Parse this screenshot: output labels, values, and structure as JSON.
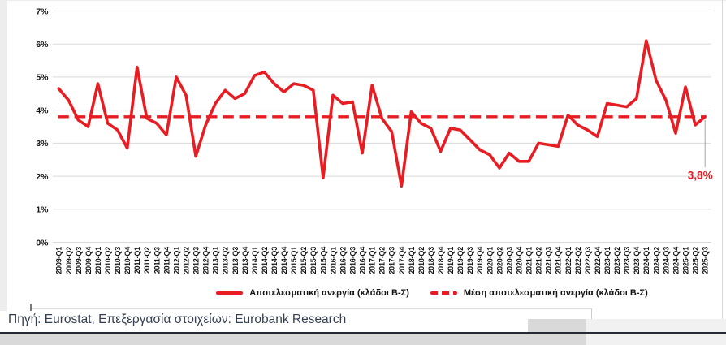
{
  "chart_data": {
    "type": "line",
    "title": "",
    "categories": [
      "2009-Q1",
      "2009-Q2",
      "2009-Q3",
      "2009-Q4",
      "2010-Q1",
      "2010-Q2",
      "2010-Q3",
      "2010-Q4",
      "2011-Q1",
      "2011-Q2",
      "2011-Q3",
      "2011-Q4",
      "2012-Q1",
      "2012-Q2",
      "2012-Q3",
      "2012-Q4",
      "2013-Q1",
      "2013-Q2",
      "2013-Q3",
      "2013-Q4",
      "2014-Q1",
      "2014-Q2",
      "2014-Q3",
      "2014-Q4",
      "2015-Q1",
      "2015-Q2",
      "2015-Q3",
      "2015-Q4",
      "2016-Q1",
      "2016-Q2",
      "2016-Q3",
      "2016-Q4",
      "2017-Q1",
      "2017-Q2",
      "2017-Q3",
      "2017-Q4",
      "2018-Q1",
      "2018-Q2",
      "2018-Q3",
      "2018-Q4",
      "2019-Q1",
      "2019-Q2",
      "2019-Q3",
      "2019-Q4",
      "2020-Q1",
      "2020-Q2",
      "2020-Q3",
      "2020-Q4",
      "2021-Q1",
      "2021-Q2",
      "2021-Q3",
      "2021-Q4",
      "2022-Q1",
      "2022-Q2",
      "2022-Q3",
      "2022-Q4",
      "2023-Q1",
      "2023-Q2",
      "2023-Q3",
      "2023-Q4",
      "2024-Q1",
      "2024-Q2",
      "2024-Q3",
      "2024-Q4",
      "2025-Q1",
      "2025-Q2",
      "2025-Q3"
    ],
    "series": [
      {
        "name": "Αποτελεσματική ανεργία (κλάδοι Β-Σ)",
        "style": "solid",
        "values": [
          4.65,
          4.3,
          3.7,
          3.5,
          4.8,
          3.6,
          3.4,
          2.85,
          5.3,
          3.75,
          3.6,
          3.25,
          5.0,
          4.45,
          2.6,
          3.55,
          4.2,
          4.6,
          4.35,
          4.5,
          5.05,
          5.15,
          4.8,
          4.55,
          4.8,
          4.75,
          4.6,
          1.95,
          4.45,
          4.2,
          4.25,
          2.7,
          4.75,
          3.75,
          3.35,
          1.7,
          3.95,
          3.6,
          3.45,
          2.75,
          3.45,
          3.4,
          3.1,
          2.8,
          2.65,
          2.25,
          2.7,
          2.45,
          2.45,
          3.0,
          2.95,
          2.9,
          3.85,
          3.55,
          3.4,
          3.2,
          4.2,
          4.15,
          4.1,
          4.35,
          6.1,
          4.9,
          4.3,
          3.3,
          4.7,
          3.55,
          3.8
        ]
      },
      {
        "name": "Μέση αποτελεσματική ανεργία (κλάδοι Β-Σ)",
        "style": "dashed",
        "value": 3.8
      }
    ],
    "ylim": [
      0,
      7
    ],
    "y_ticks": [
      "0%",
      "1%",
      "2%",
      "3%",
      "4%",
      "5%",
      "6%",
      "7%"
    ],
    "grid": true,
    "legend_position": "bottom",
    "annotation": {
      "text": "3,8%",
      "value": 3.8,
      "category": "2025-Q3"
    },
    "colors": {
      "series": "#e71d23",
      "mean": "#e71d23",
      "grid": "#d9d9d9",
      "annotation": "#e71d23"
    }
  },
  "footer": {
    "source_text": "Πηγή: Eurostat, Επεξεργασία στοιχείων: Eurobank Research"
  }
}
